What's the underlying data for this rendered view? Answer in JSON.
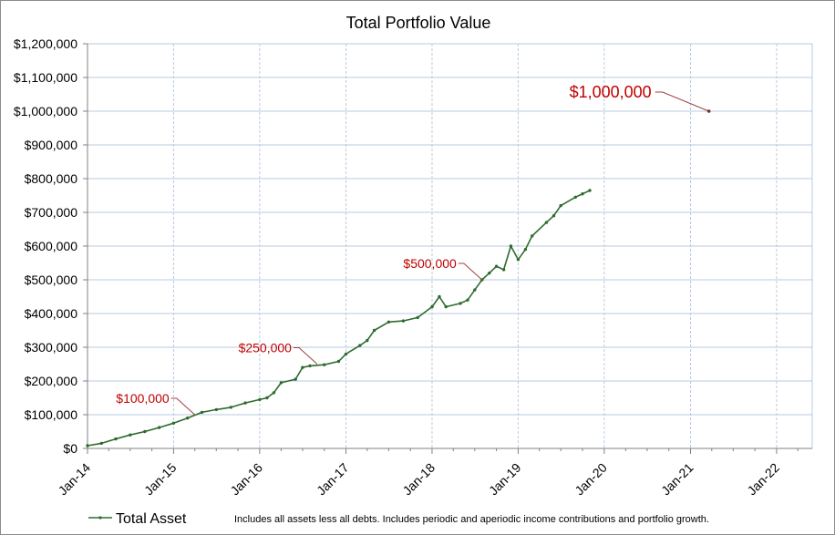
{
  "chart_data": {
    "type": "line",
    "title": "Total Portfolio Value",
    "xlabel": "",
    "ylabel": "",
    "x_axis": {
      "type": "date",
      "min": "2014-01-01",
      "max": "2022-06-01",
      "tick_dates": [
        "2014-01-01",
        "2015-01-01",
        "2016-01-01",
        "2017-01-01",
        "2018-01-01",
        "2019-01-01",
        "2020-01-01",
        "2021-01-01",
        "2022-01-01"
      ],
      "tick_labels": [
        "Jan-14",
        "Jan-15",
        "Jan-16",
        "Jan-17",
        "Jan-18",
        "Jan-19",
        "Jan-20",
        "Jan-21",
        "Jan-22"
      ]
    },
    "y_axis": {
      "min": 0,
      "max": 1200000,
      "step": 100000,
      "tick_values": [
        0,
        100000,
        200000,
        300000,
        400000,
        500000,
        600000,
        700000,
        800000,
        900000,
        1000000,
        1100000,
        1200000
      ],
      "tick_labels": [
        "$0",
        "$100,000",
        "$200,000",
        "$300,000",
        "$400,000",
        "$500,000",
        "$600,000",
        "$700,000",
        "$800,000",
        "$900,000",
        "$1,000,000",
        "$1,100,000",
        "$1,200,000"
      ]
    },
    "grid": true,
    "series": [
      {
        "name": "Total Asset",
        "color": "#2e6b2e",
        "points": [
          [
            "2014-01-01",
            8000
          ],
          [
            "2014-03-01",
            15000
          ],
          [
            "2014-05-01",
            28000
          ],
          [
            "2014-07-01",
            40000
          ],
          [
            "2014-09-01",
            50000
          ],
          [
            "2014-11-01",
            62000
          ],
          [
            "2015-01-01",
            75000
          ],
          [
            "2015-03-01",
            90000
          ],
          [
            "2015-05-01",
            107000
          ],
          [
            "2015-07-01",
            115000
          ],
          [
            "2015-09-01",
            122000
          ],
          [
            "2015-11-01",
            135000
          ],
          [
            "2016-01-01",
            145000
          ],
          [
            "2016-02-01",
            150000
          ],
          [
            "2016-03-01",
            165000
          ],
          [
            "2016-04-01",
            195000
          ],
          [
            "2016-06-01",
            205000
          ],
          [
            "2016-07-01",
            240000
          ],
          [
            "2016-08-01",
            245000
          ],
          [
            "2016-10-01",
            248000
          ],
          [
            "2016-12-01",
            258000
          ],
          [
            "2017-01-01",
            280000
          ],
          [
            "2017-03-01",
            305000
          ],
          [
            "2017-04-01",
            320000
          ],
          [
            "2017-05-01",
            350000
          ],
          [
            "2017-07-01",
            375000
          ],
          [
            "2017-09-01",
            378000
          ],
          [
            "2017-11-01",
            388000
          ],
          [
            "2018-01-01",
            420000
          ],
          [
            "2018-02-01",
            450000
          ],
          [
            "2018-03-01",
            420000
          ],
          [
            "2018-05-01",
            430000
          ],
          [
            "2018-06-01",
            440000
          ],
          [
            "2018-07-01",
            470000
          ],
          [
            "2018-08-01",
            500000
          ],
          [
            "2018-09-01",
            520000
          ],
          [
            "2018-10-01",
            540000
          ],
          [
            "2018-11-01",
            530000
          ],
          [
            "2018-12-01",
            600000
          ],
          [
            "2019-01-01",
            560000
          ],
          [
            "2019-02-01",
            590000
          ],
          [
            "2019-03-01",
            630000
          ],
          [
            "2019-05-01",
            670000
          ],
          [
            "2019-06-01",
            690000
          ],
          [
            "2019-07-01",
            720000
          ],
          [
            "2019-09-01",
            745000
          ],
          [
            "2019-10-01",
            755000
          ],
          [
            "2019-11-01",
            765000
          ]
        ]
      }
    ],
    "annotations": [
      {
        "label": "$100,000",
        "date": "2015-04-01",
        "value": 100000,
        "size": "small"
      },
      {
        "label": "$250,000",
        "date": "2016-09-01",
        "value": 250000,
        "size": "small"
      },
      {
        "label": "$500,000",
        "date": "2018-08-01",
        "value": 500000,
        "size": "small"
      },
      {
        "label": "$1,000,000",
        "date": "2021-03-20",
        "value": 1000000,
        "size": "large"
      }
    ],
    "legend": {
      "position": "bottom-left",
      "entries": [
        "Total Asset"
      ]
    },
    "footnote": "Includes all assets less all debts. Includes periodic and aperiodic income contributions and portfolio growth."
  }
}
